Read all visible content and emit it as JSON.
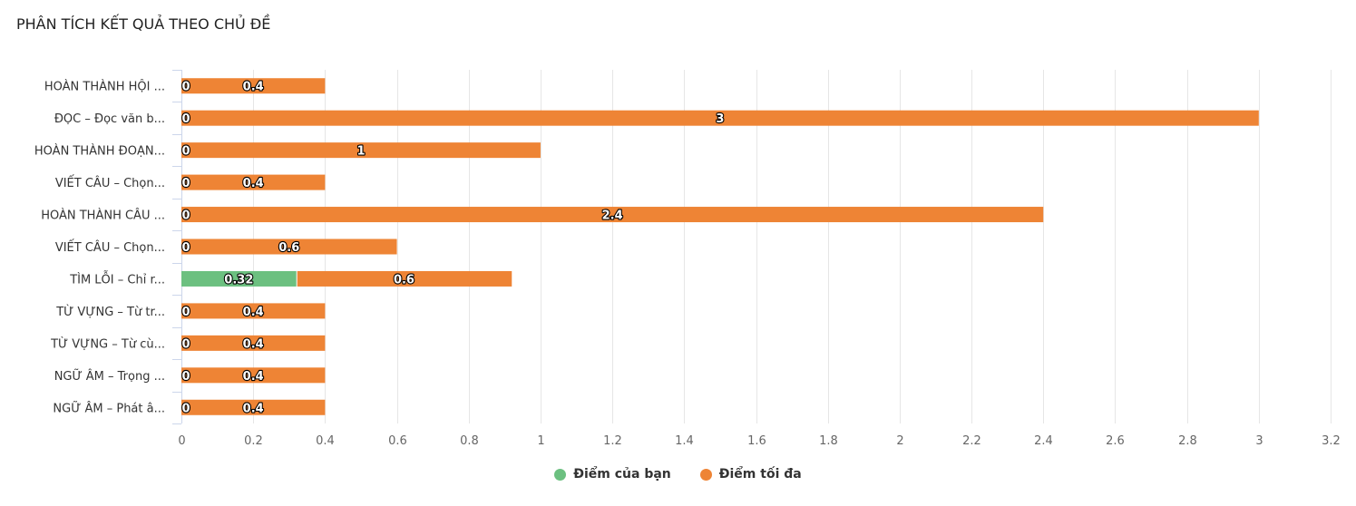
{
  "title": "PHÂN TÍCH KẾT QUẢ THEO CHỦ ĐỀ",
  "colors": {
    "your_score": "#6cc080",
    "max_score": "#ee8435",
    "grid": "#e6e6e6",
    "axis": "#ccd6eb"
  },
  "chart_data": {
    "type": "bar",
    "orientation": "horizontal",
    "stacked": true,
    "categories": [
      "HOÀN THÀNH HỘI ...",
      "ĐỌC – Đọc văn b...",
      "HOÀN THÀNH ĐOẠN...",
      "VIẾT CÂU – Chọn...",
      "HOÀN THÀNH CÂU ...",
      "VIẾT CÂU – Chọn...",
      "TÌM LỖI – Chỉ r...",
      "TỪ VỰNG – Từ tr...",
      "TỪ VỰNG – Từ cù...",
      "NGỮ ÂM – Trọng ...",
      "NGỮ ÂM – Phát â..."
    ],
    "series": [
      {
        "name": "Điểm của bạn",
        "color": "#6cc080",
        "values": [
          0,
          0,
          0,
          0,
          0,
          0,
          0.32,
          0,
          0,
          0,
          0
        ]
      },
      {
        "name": "Điểm tối đa",
        "color": "#ee8435",
        "values": [
          0.4,
          3,
          1,
          0.4,
          2.4,
          0.6,
          0.6,
          0.4,
          0.4,
          0.4,
          0.4
        ]
      }
    ],
    "xticks": [
      "0",
      "0.2",
      "0.4",
      "0.6",
      "0.8",
      "1",
      "1.2",
      "1.4",
      "1.6",
      "1.8",
      "2",
      "2.2",
      "2.4",
      "2.6",
      "2.8",
      "3",
      "3.2"
    ],
    "xlim": [
      0,
      3.2
    ],
    "grid": true,
    "legend_position": "bottom-center"
  }
}
